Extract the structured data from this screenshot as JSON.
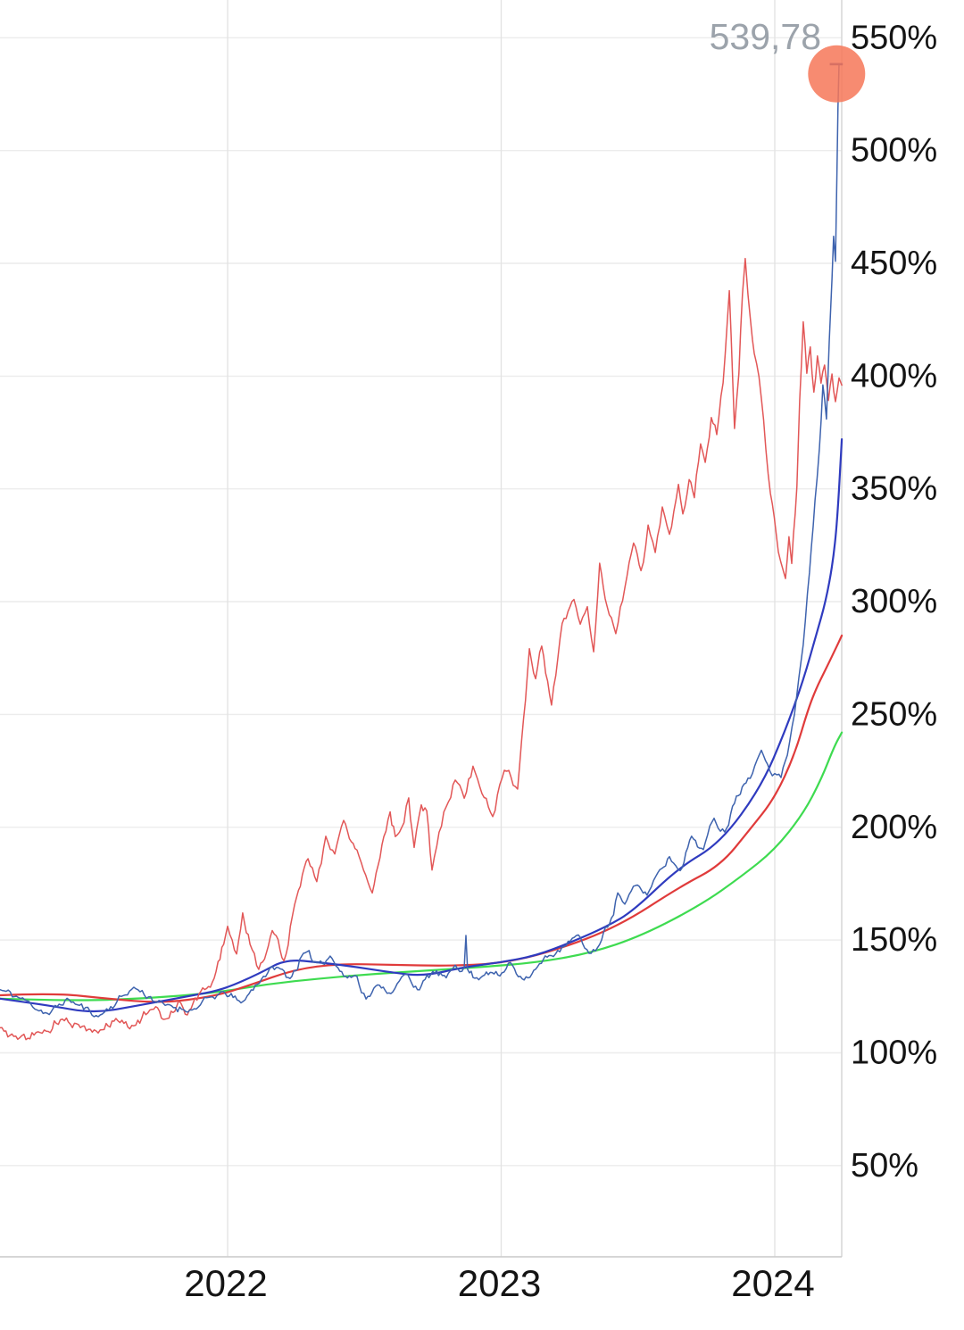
{
  "page": {
    "background": "#ffffff"
  },
  "chart_data": {
    "type": "line",
    "title": "",
    "legend": "none",
    "x_axis": {
      "unit": "year",
      "range": [
        2021.168,
        2024.245
      ],
      "ticks": [
        {
          "t": 2022,
          "label": "2022"
        },
        {
          "t": 2023,
          "label": "2023"
        },
        {
          "t": 2024,
          "label": "2024"
        }
      ]
    },
    "y_axis": {
      "unit": "percent",
      "side": "right",
      "range": [
        9,
        567
      ],
      "ticks": [
        {
          "v": 550,
          "label": "550%"
        },
        {
          "v": 500,
          "label": "500%"
        },
        {
          "v": 450,
          "label": "450%"
        },
        {
          "v": 400,
          "label": "400%"
        },
        {
          "v": 350,
          "label": "350%"
        },
        {
          "v": 300,
          "label": "300%"
        },
        {
          "v": 250,
          "label": "250%"
        },
        {
          "v": 200,
          "label": "200%"
        },
        {
          "v": 150,
          "label": "150%"
        },
        {
          "v": 100,
          "label": "100%"
        },
        {
          "v": 50,
          "label": "50%"
        }
      ]
    },
    "grid": {
      "horizontal": true,
      "vertical": true,
      "color_horizontal": "#ECECEC",
      "color_vertical": "#E3E3E3",
      "border_right": "#D9D9D9",
      "axis_bottom": "#C9C9C9"
    },
    "series": [
      {
        "name": "green-average",
        "color": "#3EDB50",
        "width": 2.2,
        "jagged": false,
        "points": [
          [
            2021.168,
            124
          ],
          [
            2021.429,
            123
          ],
          [
            2021.69,
            124
          ],
          [
            2021.951,
            126.5
          ],
          [
            2022.147,
            130.5
          ],
          [
            2022.343,
            133
          ],
          [
            2022.538,
            135
          ],
          [
            2022.734,
            136.5
          ],
          [
            2022.93,
            138
          ],
          [
            2023.126,
            140
          ],
          [
            2023.321,
            144
          ],
          [
            2023.517,
            152
          ],
          [
            2023.736,
            166
          ],
          [
            2023.876,
            178
          ],
          [
            2024.0,
            190
          ],
          [
            2024.104,
            206
          ],
          [
            2024.169,
            221
          ],
          [
            2024.218,
            236
          ],
          [
            2024.245,
            242
          ]
        ]
      },
      {
        "name": "red-average",
        "color": "#E03B3B",
        "width": 2.2,
        "jagged": false,
        "points": [
          [
            2021.168,
            125.5
          ],
          [
            2021.364,
            126.5
          ],
          [
            2021.56,
            124
          ],
          [
            2021.755,
            122
          ],
          [
            2021.951,
            125
          ],
          [
            2022.082,
            130
          ],
          [
            2022.245,
            137
          ],
          [
            2022.408,
            139.5
          ],
          [
            2022.604,
            139
          ],
          [
            2022.799,
            138.5
          ],
          [
            2022.995,
            139.5
          ],
          [
            2023.191,
            145
          ],
          [
            2023.429,
            156
          ],
          [
            2023.658,
            174
          ],
          [
            2023.801,
            183
          ],
          [
            2023.909,
            199
          ],
          [
            2024.0,
            213
          ],
          [
            2024.072,
            232
          ],
          [
            2024.121,
            252
          ],
          [
            2024.153,
            262
          ],
          [
            2024.186,
            270
          ],
          [
            2024.218,
            278
          ],
          [
            2024.245,
            285
          ]
        ]
      },
      {
        "name": "blue-average",
        "color": "#2F3BBF",
        "width": 2.2,
        "jagged": false,
        "points": [
          [
            2021.168,
            124
          ],
          [
            2021.348,
            121
          ],
          [
            2021.511,
            117.5
          ],
          [
            2021.674,
            121
          ],
          [
            2021.853,
            125
          ],
          [
            2021.984,
            128
          ],
          [
            2022.114,
            135
          ],
          [
            2022.212,
            141.5
          ],
          [
            2022.343,
            140
          ],
          [
            2022.473,
            138
          ],
          [
            2022.604,
            135.5
          ],
          [
            2022.718,
            134
          ],
          [
            2022.865,
            138
          ],
          [
            2022.995,
            140
          ],
          [
            2023.126,
            143
          ],
          [
            2023.256,
            149
          ],
          [
            2023.387,
            156
          ],
          [
            2023.484,
            163
          ],
          [
            2023.648,
            182
          ],
          [
            2023.801,
            193
          ],
          [
            2023.951,
            218
          ],
          [
            2024.039,
            243
          ],
          [
            2024.104,
            265
          ],
          [
            2024.153,
            286
          ],
          [
            2024.186,
            300
          ],
          [
            2024.212,
            317
          ],
          [
            2024.228,
            335
          ],
          [
            2024.245,
            372
          ]
        ]
      },
      {
        "name": "red-daily",
        "color": "#E25757",
        "width": 1.5,
        "jagged": true,
        "jitter": 2.4,
        "seed": 5,
        "points": [
          [
            2021.168,
            111
          ],
          [
            2021.233,
            106
          ],
          [
            2021.315,
            109
          ],
          [
            2021.396,
            115
          ],
          [
            2021.462,
            111
          ],
          [
            2021.527,
            109
          ],
          [
            2021.592,
            115
          ],
          [
            2021.657,
            112
          ],
          [
            2021.723,
            119
          ],
          [
            2021.772,
            115
          ],
          [
            2021.821,
            123
          ],
          [
            2021.853,
            117
          ],
          [
            2021.902,
            127
          ],
          [
            2021.951,
            133
          ],
          [
            2022.0,
            156
          ],
          [
            2022.033,
            144
          ],
          [
            2022.055,
            162
          ],
          [
            2022.082,
            148
          ],
          [
            2022.114,
            137
          ],
          [
            2022.163,
            154
          ],
          [
            2022.206,
            141
          ],
          [
            2022.245,
            166
          ],
          [
            2022.294,
            186
          ],
          [
            2022.326,
            176
          ],
          [
            2022.359,
            196
          ],
          [
            2022.392,
            188
          ],
          [
            2022.424,
            203
          ],
          [
            2022.473,
            190
          ],
          [
            2022.529,
            171
          ],
          [
            2022.571,
            196
          ],
          [
            2022.594,
            207
          ],
          [
            2022.613,
            196
          ],
          [
            2022.636,
            200
          ],
          [
            2022.662,
            213
          ],
          [
            2022.682,
            191
          ],
          [
            2022.708,
            210
          ],
          [
            2022.728,
            207
          ],
          [
            2022.747,
            181
          ],
          [
            2022.773,
            198
          ],
          [
            2022.799,
            209
          ],
          [
            2022.832,
            221
          ],
          [
            2022.865,
            213
          ],
          [
            2022.897,
            227
          ],
          [
            2022.93,
            215
          ],
          [
            2022.969,
            205
          ],
          [
            2022.995,
            219
          ],
          [
            2023.028,
            225
          ],
          [
            2023.06,
            217
          ],
          [
            2023.103,
            279
          ],
          [
            2023.126,
            266
          ],
          [
            2023.148,
            280
          ],
          [
            2023.184,
            254
          ],
          [
            2023.223,
            290
          ],
          [
            2023.266,
            301
          ],
          [
            2023.289,
            290
          ],
          [
            2023.315,
            298
          ],
          [
            2023.338,
            278
          ],
          [
            2023.36,
            317
          ],
          [
            2023.387,
            298
          ],
          [
            2023.419,
            286
          ],
          [
            2023.452,
            306
          ],
          [
            2023.484,
            326
          ],
          [
            2023.511,
            314
          ],
          [
            2023.537,
            334
          ],
          [
            2023.563,
            322
          ],
          [
            2023.589,
            342
          ],
          [
            2023.615,
            330
          ],
          [
            2023.631,
            340
          ],
          [
            2023.648,
            352
          ],
          [
            2023.664,
            339
          ],
          [
            2023.687,
            354
          ],
          [
            2023.706,
            346
          ],
          [
            2023.729,
            370
          ],
          [
            2023.746,
            362
          ],
          [
            2023.768,
            382
          ],
          [
            2023.788,
            374
          ],
          [
            2023.811,
            397
          ],
          [
            2023.834,
            438
          ],
          [
            2023.853,
            377
          ],
          [
            2023.869,
            401
          ],
          [
            2023.882,
            436
          ],
          [
            2023.892,
            452
          ],
          [
            2023.902,
            436
          ],
          [
            2023.912,
            424
          ],
          [
            2023.925,
            410
          ],
          [
            2023.951,
            390
          ],
          [
            2023.984,
            348
          ],
          [
            2024.013,
            322
          ],
          [
            2024.039,
            310
          ],
          [
            2024.052,
            329
          ],
          [
            2024.062,
            317
          ],
          [
            2024.081,
            351
          ],
          [
            2024.091,
            389
          ],
          [
            2024.104,
            424
          ],
          [
            2024.117,
            401
          ],
          [
            2024.13,
            413
          ],
          [
            2024.143,
            393
          ],
          [
            2024.156,
            409
          ],
          [
            2024.169,
            397
          ],
          [
            2024.182,
            405
          ],
          [
            2024.196,
            389
          ],
          [
            2024.209,
            401
          ],
          [
            2024.222,
            389
          ],
          [
            2024.235,
            399
          ],
          [
            2024.245,
            396
          ]
        ]
      },
      {
        "name": "blue-daily",
        "color": "#3E63AE",
        "width": 1.5,
        "jagged": true,
        "jitter": 1.8,
        "seed": 11,
        "points": [
          [
            2021.168,
            128
          ],
          [
            2021.266,
            123
          ],
          [
            2021.348,
            117
          ],
          [
            2021.413,
            124
          ],
          [
            2021.527,
            116
          ],
          [
            2021.657,
            129
          ],
          [
            2021.772,
            121
          ],
          [
            2021.87,
            119
          ],
          [
            2021.984,
            127
          ],
          [
            2022.049,
            122
          ],
          [
            2022.131,
            134
          ],
          [
            2022.179,
            138
          ],
          [
            2022.228,
            133
          ],
          [
            2022.277,
            144
          ],
          [
            2022.326,
            140
          ],
          [
            2022.375,
            143
          ],
          [
            2022.424,
            134
          ],
          [
            2022.473,
            134
          ],
          [
            2022.506,
            124
          ],
          [
            2022.555,
            130
          ],
          [
            2022.604,
            127
          ],
          [
            2022.652,
            135
          ],
          [
            2022.701,
            128
          ],
          [
            2022.75,
            136
          ],
          [
            2022.799,
            133
          ],
          [
            2022.832,
            139
          ],
          [
            2022.865,
            138
          ],
          [
            2022.871,
            152
          ],
          [
            2022.877,
            137
          ],
          [
            2022.904,
            133
          ],
          [
            2022.946,
            136
          ],
          [
            2022.995,
            134
          ],
          [
            2023.034,
            140
          ],
          [
            2023.077,
            133
          ],
          [
            2023.126,
            137
          ],
          [
            2023.175,
            143
          ],
          [
            2023.23,
            147
          ],
          [
            2023.282,
            152
          ],
          [
            2023.321,
            144
          ],
          [
            2023.36,
            148
          ],
          [
            2023.403,
            160
          ],
          [
            2023.426,
            171
          ],
          [
            2023.452,
            166
          ],
          [
            2023.491,
            174
          ],
          [
            2023.533,
            170
          ],
          [
            2023.573,
            180
          ],
          [
            2023.615,
            187
          ],
          [
            2023.654,
            181
          ],
          [
            2023.696,
            196
          ],
          [
            2023.739,
            190
          ],
          [
            2023.778,
            204
          ],
          [
            2023.817,
            198
          ],
          [
            2023.86,
            214
          ],
          [
            2023.902,
            222
          ],
          [
            2023.935,
            230
          ],
          [
            2023.951,
            234
          ],
          [
            2023.974,
            228
          ],
          [
            2024.0,
            224
          ],
          [
            2024.023,
            222
          ],
          [
            2024.046,
            232
          ],
          [
            2024.072,
            250
          ],
          [
            2024.104,
            281
          ],
          [
            2024.127,
            313
          ],
          [
            2024.147,
            345
          ],
          [
            2024.163,
            368
          ],
          [
            2024.176,
            396
          ],
          [
            2024.189,
            381
          ],
          [
            2024.199,
            415
          ],
          [
            2024.209,
            443
          ],
          [
            2024.215,
            462
          ],
          [
            2024.222,
            451
          ],
          [
            2024.227,
            489
          ],
          [
            2024.231,
            519
          ],
          [
            2024.235,
            538.5
          ]
        ]
      }
    ],
    "annotation": {
      "last_value_label": "539,78",
      "last_value": 539.78,
      "label_color": "#9CA3AB",
      "marker": {
        "t": 2024.226,
        "v": 534,
        "radius_px": 32,
        "color": "#F67758",
        "opacity": 0.85
      },
      "cap": {
        "v": 538.3,
        "t1": 2024.201,
        "t2": 2024.2485,
        "color": "#2B4EA2",
        "width": 2.6
      }
    }
  }
}
